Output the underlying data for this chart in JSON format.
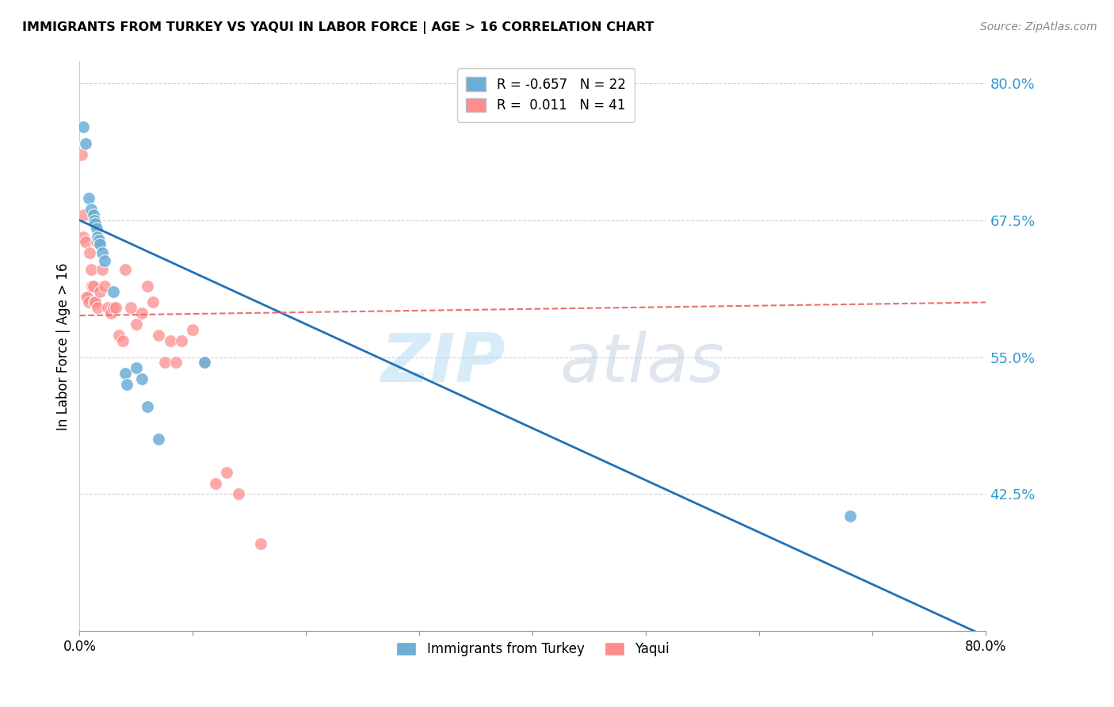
{
  "title": "IMMIGRANTS FROM TURKEY VS YAQUI IN LABOR FORCE | AGE > 16 CORRELATION CHART",
  "source": "Source: ZipAtlas.com",
  "ylabel": "In Labor Force | Age > 16",
  "xlim": [
    0.0,
    0.8
  ],
  "ylim": [
    0.3,
    0.82
  ],
  "yticks": [
    0.425,
    0.55,
    0.675,
    0.8
  ],
  "ytick_labels": [
    "42.5%",
    "55.0%",
    "67.5%",
    "80.0%"
  ],
  "xticks": [
    0.0,
    0.1,
    0.2,
    0.3,
    0.4,
    0.5,
    0.6,
    0.7,
    0.8
  ],
  "xtick_labels": [
    "0.0%",
    "",
    "",
    "",
    "",
    "",
    "",
    "",
    "80.0%"
  ],
  "turkey_R": -0.657,
  "turkey_N": 22,
  "yaqui_R": 0.011,
  "yaqui_N": 41,
  "turkey_color": "#6baed6",
  "yaqui_color": "#fc8d8d",
  "turkey_line_color": "#2171b5",
  "yaqui_line_color": "#e87070",
  "watermark_zip": "ZIP",
  "watermark_atlas": "atlas",
  "turkey_x": [
    0.003,
    0.005,
    0.008,
    0.01,
    0.012,
    0.013,
    0.014,
    0.015,
    0.016,
    0.017,
    0.018,
    0.02,
    0.022,
    0.03,
    0.04,
    0.042,
    0.05,
    0.055,
    0.06,
    0.07,
    0.11,
    0.68
  ],
  "turkey_y": [
    0.76,
    0.745,
    0.695,
    0.685,
    0.68,
    0.675,
    0.672,
    0.668,
    0.66,
    0.657,
    0.653,
    0.645,
    0.638,
    0.61,
    0.535,
    0.525,
    0.54,
    0.53,
    0.505,
    0.475,
    0.545,
    0.405
  ],
  "yaqui_x": [
    0.002,
    0.003,
    0.004,
    0.005,
    0.006,
    0.007,
    0.008,
    0.009,
    0.01,
    0.011,
    0.012,
    0.013,
    0.014,
    0.015,
    0.016,
    0.018,
    0.02,
    0.022,
    0.025,
    0.028,
    0.03,
    0.032,
    0.035,
    0.038,
    0.04,
    0.045,
    0.05,
    0.055,
    0.06,
    0.065,
    0.07,
    0.075,
    0.08,
    0.085,
    0.09,
    0.1,
    0.11,
    0.12,
    0.13,
    0.14,
    0.16
  ],
  "yaqui_y": [
    0.735,
    0.66,
    0.68,
    0.655,
    0.605,
    0.605,
    0.6,
    0.645,
    0.63,
    0.615,
    0.615,
    0.6,
    0.6,
    0.655,
    0.595,
    0.61,
    0.63,
    0.615,
    0.595,
    0.59,
    0.595,
    0.595,
    0.57,
    0.565,
    0.63,
    0.595,
    0.58,
    0.59,
    0.615,
    0.6,
    0.57,
    0.545,
    0.565,
    0.545,
    0.565,
    0.575,
    0.545,
    0.435,
    0.445,
    0.425,
    0.38
  ],
  "turkey_line_x": [
    0.0,
    0.8
  ],
  "turkey_line_y": [
    0.675,
    0.295
  ],
  "yaqui_line_x": [
    0.0,
    0.8
  ],
  "yaqui_line_y": [
    0.588,
    0.6
  ]
}
